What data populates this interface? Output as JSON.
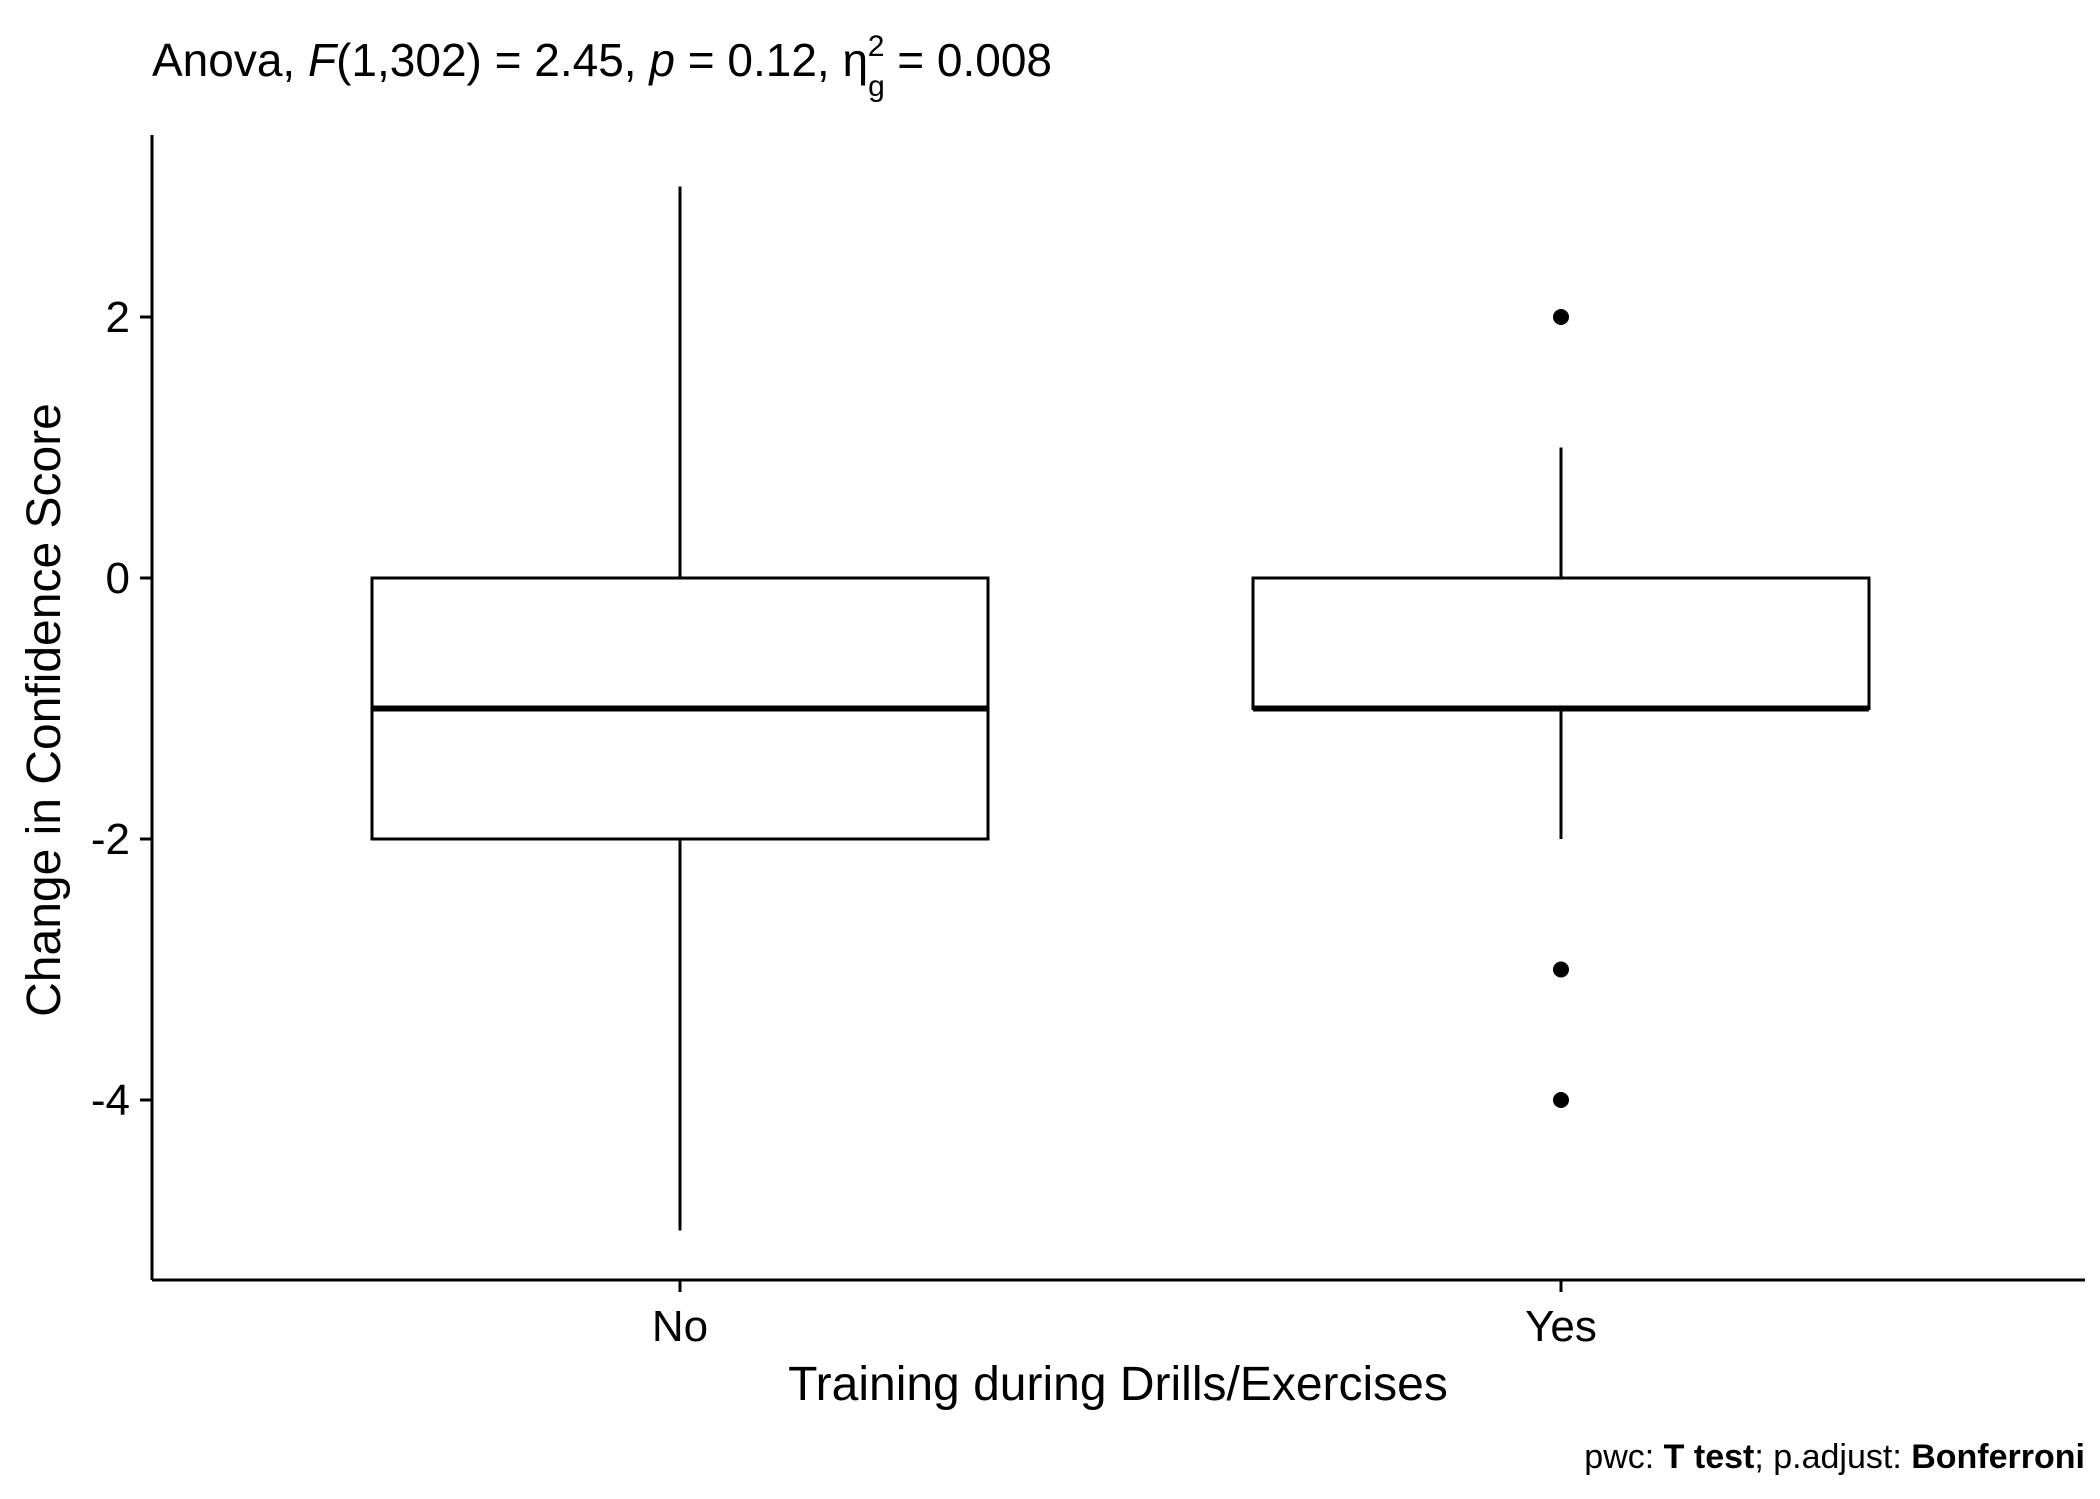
{
  "chart_data": {
    "type": "box",
    "title": {
      "prefix": "Anova, ",
      "stat_symbol": "F",
      "stat_args": "(1,302) = 2.45, ",
      "p_symbol": "p",
      "p_value": " = 0.12, ",
      "eta_symbol": "η",
      "eta_subscript": "g",
      "eta_superscript": "2",
      "eta_value": " = 0.008"
    },
    "xlabel": "Training during Drills/Exercises",
    "ylabel": "Change in Confidence Score",
    "categories": [
      "No",
      "Yes"
    ],
    "y_ticks": [
      2,
      0,
      -2,
      -4
    ],
    "y_tick_labels": [
      "2",
      "0",
      "-2",
      "-4"
    ],
    "ylim": [
      -5.4,
      3.4
    ],
    "boxes": [
      {
        "category": "No",
        "lower_whisker": -5,
        "q1": -2,
        "median": -1,
        "q3": 0,
        "upper_whisker": 3,
        "outliers": []
      },
      {
        "category": "Yes",
        "lower_whisker": -2,
        "q1": -1,
        "median": -1,
        "q3": 0,
        "upper_whisker": 1,
        "outliers": [
          2,
          -3,
          -4
        ]
      }
    ],
    "caption": {
      "pwc_label": "pwc: ",
      "pwc_value": "T test",
      "sep": "; p.adjust: ",
      "adjust_value": "Bonferroni"
    },
    "grid": false,
    "legend": "none",
    "colors": {
      "box_fill": "#ffffff",
      "line": "#000000"
    }
  }
}
